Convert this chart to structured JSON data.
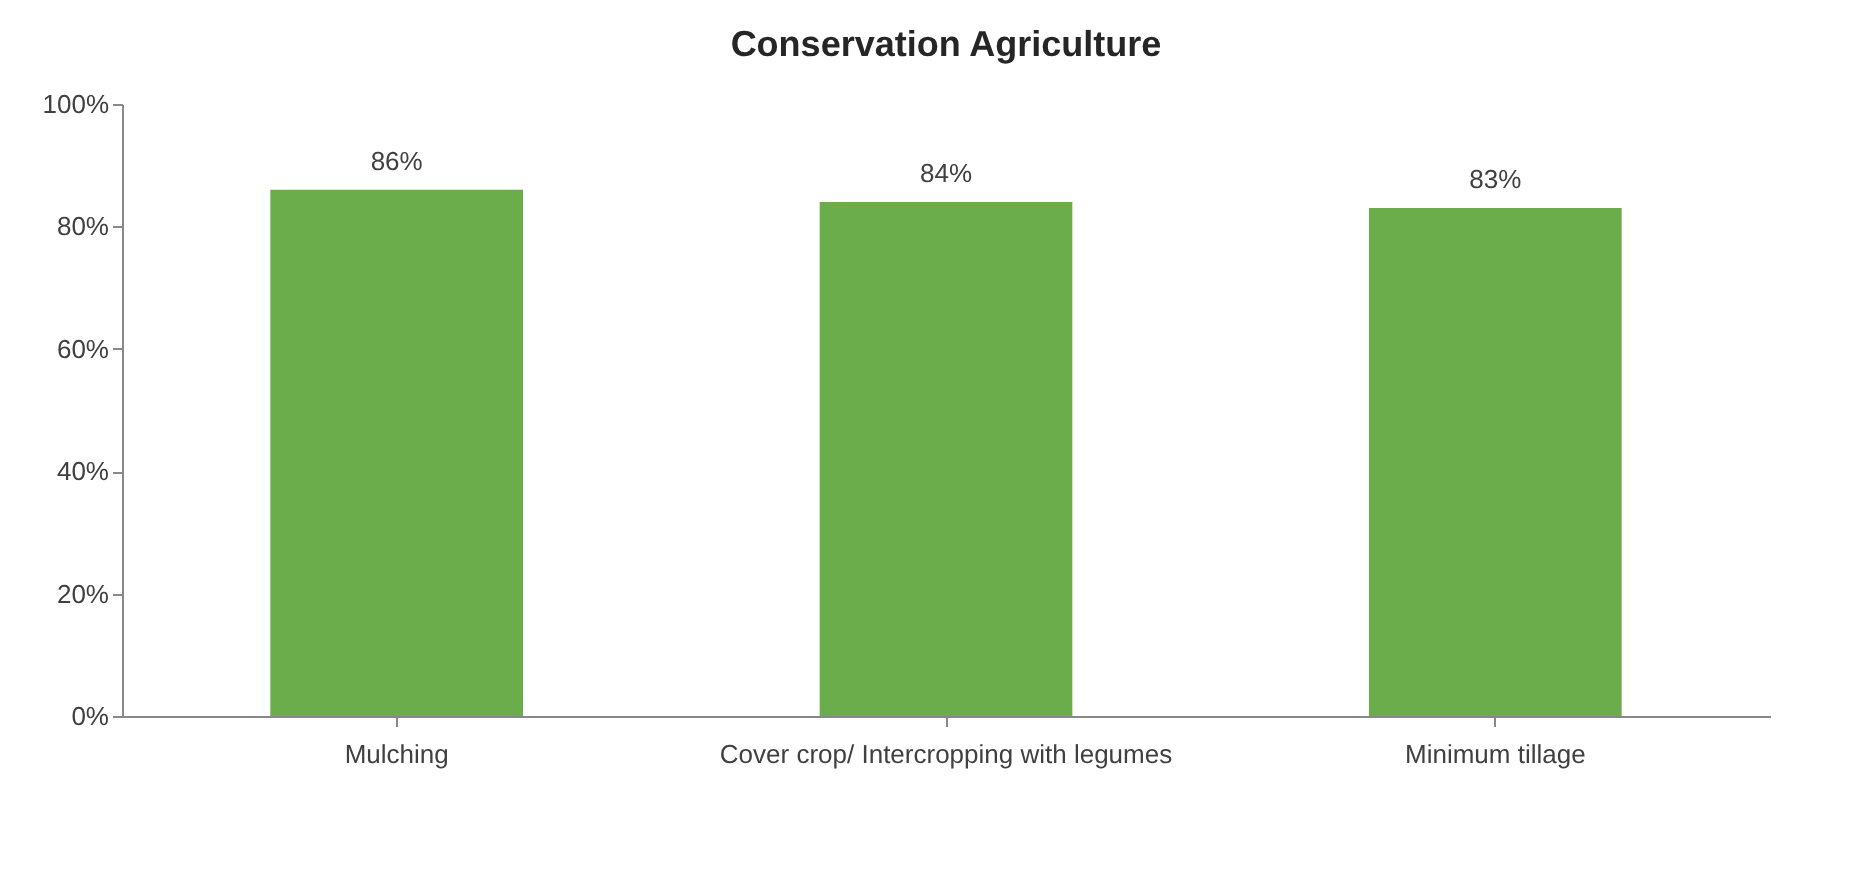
{
  "chart_data": {
    "type": "bar",
    "title": "Conservation Agriculture",
    "categories": [
      "Mulching",
      "Cover crop/ Intercropping with legumes",
      "Minimum tillage"
    ],
    "values": [
      86,
      84,
      83
    ],
    "color": "#6aad4a",
    "value_labels": [
      "86%",
      "84%",
      "83%"
    ],
    "ylim": [
      0,
      100
    ],
    "yticks": [
      {
        "value": 0,
        "label": "0%"
      },
      {
        "value": 20,
        "label": "20%"
      },
      {
        "value": 40,
        "label": "40%"
      },
      {
        "value": 60,
        "label": "60%"
      },
      {
        "value": 80,
        "label": "80%"
      },
      {
        "value": 100,
        "label": "100%"
      }
    ],
    "grid": false
  }
}
